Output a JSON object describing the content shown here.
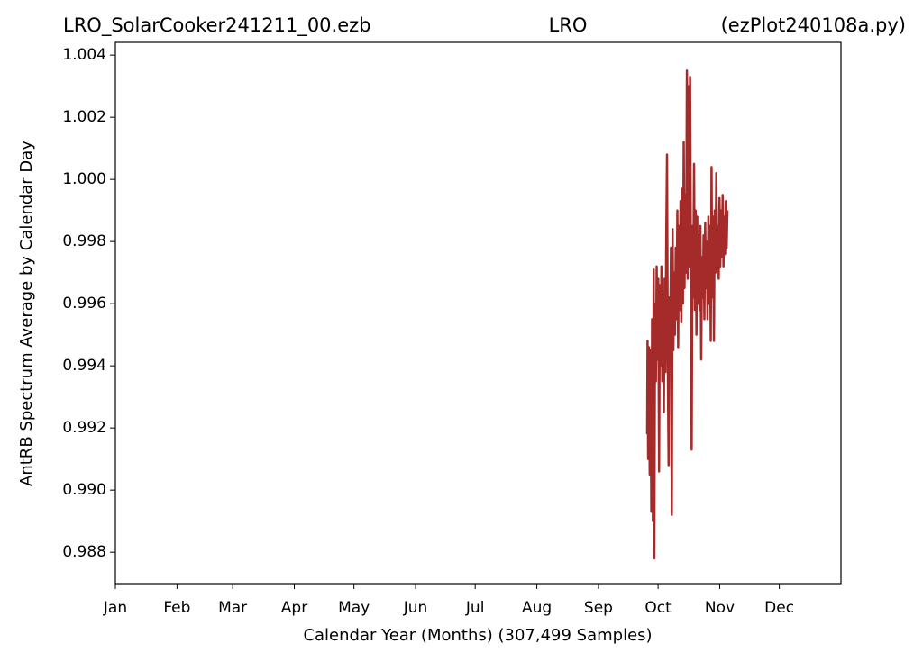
{
  "chart_data": {
    "type": "line",
    "title_parts": [
      "LRO_SolarCooker241211_00.ezb",
      "LRO",
      "(ezPlot240108a.py)"
    ],
    "x_label": "Calendar Year (Months) (307,499 Samples)",
    "y_label": "AntRB Spectrum Average by Calendar Day",
    "xlim": [
      1,
      366
    ],
    "ylim": [
      0.98699,
      1.00441
    ],
    "xticks": [
      {
        "value": 1,
        "label": "Jan"
      },
      {
        "value": 32,
        "label": "Feb"
      },
      {
        "value": 60,
        "label": "Mar"
      },
      {
        "value": 91,
        "label": "Apr"
      },
      {
        "value": 121,
        "label": "May"
      },
      {
        "value": 152,
        "label": "Jun"
      },
      {
        "value": 182,
        "label": "Jul"
      },
      {
        "value": 213,
        "label": "Aug"
      },
      {
        "value": 244,
        "label": "Sep"
      },
      {
        "value": 274,
        "label": "Oct"
      },
      {
        "value": 305,
        "label": "Nov"
      },
      {
        "value": 335,
        "label": "Dec"
      }
    ],
    "yticks": [
      0.988,
      {
        "value": 0.99,
        "label": "0.990"
      },
      0.992,
      0.994,
      0.996,
      0.998,
      {
        "value": 1.0,
        "label": "1.000"
      },
      1.002,
      1.004
    ],
    "grid": false,
    "series": [
      {
        "color": "#a52a2a",
        "x": [
          268.5,
          268.7,
          269.0,
          269.4,
          269.8,
          270.2,
          270.6,
          271.0,
          271.4,
          271.8,
          272.1,
          272.5,
          272.9,
          273.3,
          273.7,
          274.1,
          274.5,
          274.9,
          275.3,
          275.7,
          276.1,
          276.5,
          276.9,
          277.3,
          277.7,
          278.1,
          278.5,
          278.9,
          279.3,
          279.7,
          280.1,
          280.5,
          280.9,
          281.3,
          281.7,
          282.1,
          282.5,
          282.9,
          283.3,
          283.7,
          284.1,
          284.5,
          284.9,
          285.3,
          285.7,
          286.1,
          286.5,
          286.9,
          287.3,
          287.7,
          288.1,
          288.5,
          288.9,
          289.3,
          289.7,
          290.1,
          290.5,
          290.9,
          291.3,
          291.7,
          292.1,
          292.5,
          292.9,
          293.3,
          293.7,
          294.1,
          294.5,
          294.9,
          295.3,
          295.7,
          296.1,
          296.5,
          296.9,
          297.3,
          297.7,
          298.1,
          298.5,
          298.9,
          299.3,
          299.7,
          300.1,
          300.5,
          300.9,
          301.3,
          301.7,
          302.1,
          302.5,
          302.9,
          303.3,
          303.7,
          304.1,
          304.5,
          304.9,
          305.3,
          305.7,
          306.1,
          306.5,
          306.9,
          307.3,
          307.7,
          308.1,
          308.5,
          308.9
        ],
        "values": [
          0.9918,
          0.9948,
          0.991,
          0.9946,
          0.9905,
          0.9945,
          0.9893,
          0.9955,
          0.989,
          0.9971,
          0.9878,
          0.996,
          0.9935,
          0.9972,
          0.9942,
          0.9968,
          0.9906,
          0.9966,
          0.994,
          0.9972,
          0.9935,
          0.9963,
          0.9925,
          0.9968,
          0.9938,
          0.998,
          1.0008,
          0.994,
          0.9908,
          0.9962,
          0.995,
          0.9978,
          0.9892,
          0.9984,
          0.9945,
          0.997,
          0.995,
          0.9978,
          0.9955,
          0.999,
          0.9946,
          0.9985,
          0.9958,
          0.9993,
          0.9954,
          0.9997,
          0.996,
          1.0012,
          0.9965,
          0.9995,
          0.997,
          1.0035,
          0.9968,
          1.003,
          0.9972,
          1.0033,
          0.9975,
          0.9913,
          0.9985,
          0.9962,
          1.0005,
          0.9958,
          0.999,
          0.995,
          0.9988,
          0.996,
          0.9982,
          0.9958,
          0.9985,
          0.9942,
          0.9975,
          0.9962,
          0.9982,
          0.9955,
          0.9986,
          0.9965,
          0.998,
          0.9955,
          0.9988,
          0.996,
          0.9985,
          0.9948,
          1.0004,
          0.9962,
          0.9988,
          0.9948,
          0.999,
          0.997,
          1.0002,
          0.9972,
          0.9985,
          0.9968,
          0.9994,
          0.9972,
          0.999,
          0.9975,
          0.9995,
          0.9972,
          0.9988,
          0.9976,
          0.9993,
          0.9978,
          0.999
        ]
      }
    ]
  }
}
